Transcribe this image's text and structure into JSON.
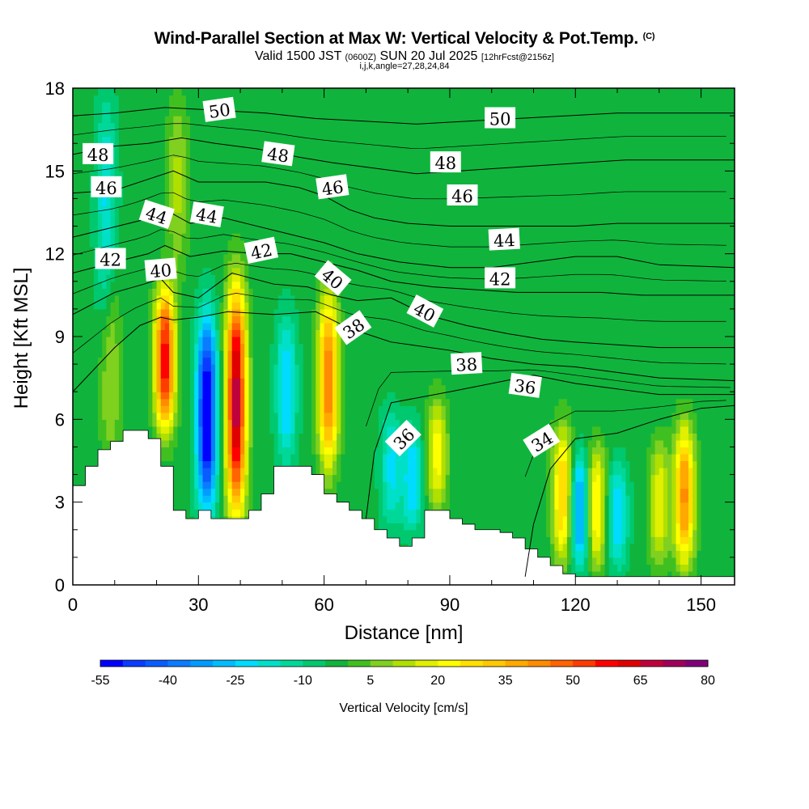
{
  "header": {
    "title": "Wind-Parallel Section at Max W: Vertical Velocity & Pot.Temp.",
    "copyright": "(C)",
    "valid_pre": "Valid 1500 JST ",
    "valid_utc": "(0600Z)",
    "valid_post": " SUN 20 Jul 2025 ",
    "forecast": "[12hrFcst@2156z]",
    "params": "i,j,k,angle=27,28,24,84"
  },
  "chart_data": {
    "type": "heatmap",
    "xlabel": "Distance [nm]",
    "ylabel": "Height [Kft MSL]",
    "xlim": [
      0,
      158
    ],
    "ylim": [
      0,
      18
    ],
    "x_ticks": [
      0,
      30,
      60,
      90,
      120,
      150
    ],
    "y_ticks": [
      0,
      3,
      6,
      9,
      12,
      15,
      18
    ],
    "colorbar": {
      "label": "Vertical Velocity [cm/s]",
      "tick_labels": [
        "-55",
        "-40",
        "-25",
        "-10",
        "5",
        "20",
        "35",
        "50",
        "65",
        "80"
      ],
      "levels": [
        -55,
        -50,
        -45,
        -40,
        -35,
        -30,
        -25,
        -20,
        -15,
        -10,
        -5,
        0,
        5,
        10,
        15,
        20,
        25,
        30,
        35,
        40,
        45,
        50,
        55,
        60,
        65,
        70,
        75,
        80
      ],
      "colors": [
        "#0000ff",
        "#0a3cff",
        "#0a5cff",
        "#0a7cff",
        "#009cff",
        "#00bcff",
        "#00dcff",
        "#00e0c8",
        "#00d89a",
        "#00c86e",
        "#10b43c",
        "#40c020",
        "#80d020",
        "#b0e000",
        "#e0f000",
        "#ffff00",
        "#ffe000",
        "#ffc800",
        "#ffa800",
        "#ff8c00",
        "#ff6400",
        "#ff3c00",
        "#ff0000",
        "#e00000",
        "#c0003c",
        "#a0005a",
        "#800078"
      ]
    },
    "w_field": {
      "background": -3,
      "cells": [
        {
          "x": 22,
          "z_bottom": 5.4,
          "z_top": 11.0,
          "peak": 62
        },
        {
          "x": 32,
          "z_bottom": 2.4,
          "z_top": 10.0,
          "peak": -55
        },
        {
          "x": 39,
          "z_bottom": 2.2,
          "z_top": 11.2,
          "peak": 72
        },
        {
          "x": 51,
          "z_bottom": 4.2,
          "z_top": 10.0,
          "peak": -22
        },
        {
          "x": 61,
          "z_bottom": 4.0,
          "z_top": 10.8,
          "peak": 48
        },
        {
          "x": 76,
          "z_bottom": 2.0,
          "z_top": 6.5,
          "peak": -18
        },
        {
          "x": 81,
          "z_bottom": 1.8,
          "z_top": 6.0,
          "peak": -22
        },
        {
          "x": 87,
          "z_bottom": 2.5,
          "z_top": 7.0,
          "peak": 25
        },
        {
          "x": 117,
          "z_bottom": 0.6,
          "z_top": 6.0,
          "peak": 35
        },
        {
          "x": 121,
          "z_bottom": 0.4,
          "z_top": 5.0,
          "peak": -32
        },
        {
          "x": 125,
          "z_bottom": 0.4,
          "z_top": 5.2,
          "peak": 30
        },
        {
          "x": 130,
          "z_bottom": 0.5,
          "z_top": 4.6,
          "peak": -22
        },
        {
          "x": 140,
          "z_bottom": 0.5,
          "z_top": 5.4,
          "peak": 22
        },
        {
          "x": 146,
          "z_bottom": 0.5,
          "z_top": 6.0,
          "peak": 45
        },
        {
          "x": 9,
          "z_bottom": 4.0,
          "z_top": 12.0,
          "peak": 14
        },
        {
          "x": 25,
          "z_bottom": 11.0,
          "z_top": 18.0,
          "peak": 14
        },
        {
          "x": 8,
          "z_bottom": 9.0,
          "z_top": 18.0,
          "peak": -18
        }
      ]
    },
    "terrain": [
      [
        0,
        3.6
      ],
      [
        3,
        3.6
      ],
      [
        3,
        4.3
      ],
      [
        6,
        4.3
      ],
      [
        6,
        4.9
      ],
      [
        9,
        4.9
      ],
      [
        9,
        5.2
      ],
      [
        12,
        5.2
      ],
      [
        12,
        5.6
      ],
      [
        18,
        5.6
      ],
      [
        18,
        5.3
      ],
      [
        21,
        5.3
      ],
      [
        21,
        4.3
      ],
      [
        24,
        4.3
      ],
      [
        24,
        2.7
      ],
      [
        27,
        2.7
      ],
      [
        27,
        2.4
      ],
      [
        30,
        2.4
      ],
      [
        30,
        2.7
      ],
      [
        33,
        2.7
      ],
      [
        33,
        2.4
      ],
      [
        42,
        2.4
      ],
      [
        42,
        2.7
      ],
      [
        45,
        2.7
      ],
      [
        45,
        3.3
      ],
      [
        48,
        3.3
      ],
      [
        48,
        4.3
      ],
      [
        57,
        4.3
      ],
      [
        57,
        4.0
      ],
      [
        60,
        4.0
      ],
      [
        60,
        3.3
      ],
      [
        63,
        3.3
      ],
      [
        63,
        3.0
      ],
      [
        66,
        3.0
      ],
      [
        66,
        2.7
      ],
      [
        69,
        2.7
      ],
      [
        69,
        2.4
      ],
      [
        72,
        2.4
      ],
      [
        72,
        2.0
      ],
      [
        75,
        2.0
      ],
      [
        75,
        1.7
      ],
      [
        78,
        1.7
      ],
      [
        78,
        1.4
      ],
      [
        81,
        1.4
      ],
      [
        81,
        1.7
      ],
      [
        84,
        1.7
      ],
      [
        84,
        2.7
      ],
      [
        90,
        2.7
      ],
      [
        90,
        2.4
      ],
      [
        93,
        2.4
      ],
      [
        93,
        2.2
      ],
      [
        96,
        2.2
      ],
      [
        96,
        2.0
      ],
      [
        102,
        2.0
      ],
      [
        102,
        1.9
      ],
      [
        105,
        1.9
      ],
      [
        105,
        1.7
      ],
      [
        108,
        1.7
      ],
      [
        108,
        1.3
      ],
      [
        111,
        1.3
      ],
      [
        111,
        1.0
      ],
      [
        114,
        1.0
      ],
      [
        114,
        0.7
      ],
      [
        117,
        0.7
      ],
      [
        117,
        0.4
      ],
      [
        120,
        0.4
      ],
      [
        120,
        0.3
      ],
      [
        158,
        0.3
      ]
    ],
    "theta_contours": [
      {
        "level": 34,
        "points": [
          [
            108,
            0.3
          ],
          [
            110,
            2.2
          ],
          [
            114,
            4.2
          ],
          [
            120,
            5.3
          ],
          [
            130,
            5.5
          ],
          [
            140,
            6.0
          ],
          [
            150,
            6.4
          ],
          [
            158,
            6.5
          ]
        ]
      },
      {
        "level": 36,
        "points": [
          [
            70,
            2.4
          ],
          [
            72,
            4.8
          ],
          [
            76,
            6.6
          ],
          [
            90,
            7.0
          ],
          [
            100,
            7.3
          ],
          [
            110,
            7.6
          ],
          [
            120,
            7.3
          ],
          [
            130,
            7.1
          ],
          [
            140,
            6.9
          ],
          [
            158,
            6.9
          ]
        ]
      },
      {
        "level": 38,
        "points": [
          [
            0,
            7.0
          ],
          [
            10,
            8.6
          ],
          [
            16,
            9.4
          ],
          [
            21,
            9.7
          ],
          [
            24,
            9.6
          ],
          [
            30,
            9.7
          ],
          [
            37,
            9.9
          ],
          [
            48,
            9.8
          ],
          [
            58,
            9.9
          ],
          [
            62,
            9.6
          ],
          [
            66,
            9.3
          ],
          [
            76,
            8.8
          ],
          [
            90,
            8.5
          ],
          [
            100,
            8.2
          ],
          [
            110,
            8.0
          ],
          [
            120,
            7.9
          ],
          [
            130,
            7.7
          ],
          [
            140,
            7.5
          ],
          [
            158,
            7.4
          ]
        ]
      },
      {
        "level": 40,
        "points": [
          [
            0,
            9.8
          ],
          [
            10,
            10.6
          ],
          [
            17,
            10.9
          ],
          [
            21,
            11.1
          ],
          [
            24,
            10.6
          ],
          [
            30,
            10.4
          ],
          [
            38,
            11.3
          ],
          [
            48,
            10.9
          ],
          [
            56,
            10.8
          ],
          [
            62,
            10.5
          ],
          [
            68,
            10.3
          ],
          [
            76,
            10.4
          ],
          [
            84,
            9.8
          ],
          [
            94,
            9.4
          ],
          [
            104,
            9.1
          ],
          [
            112,
            8.9
          ],
          [
            120,
            8.8
          ],
          [
            130,
            8.7
          ],
          [
            140,
            8.6
          ],
          [
            158,
            8.6
          ]
        ]
      },
      {
        "level": 42,
        "points": [
          [
            0,
            11.3
          ],
          [
            10,
            11.7
          ],
          [
            18,
            12.0
          ],
          [
            22,
            12.3
          ],
          [
            28,
            11.9
          ],
          [
            36,
            12.1
          ],
          [
            44,
            12.0
          ],
          [
            52,
            12.0
          ],
          [
            60,
            11.7
          ],
          [
            68,
            11.4
          ],
          [
            76,
            11.0
          ],
          [
            86,
            10.8
          ],
          [
            96,
            10.7
          ],
          [
            106,
            10.6
          ],
          [
            116,
            10.6
          ],
          [
            126,
            10.6
          ],
          [
            136,
            10.5
          ],
          [
            158,
            10.5
          ]
        ]
      },
      {
        "level": 44,
        "points": [
          [
            0,
            12.6
          ],
          [
            8,
            12.9
          ],
          [
            16,
            13.2
          ],
          [
            22,
            13.6
          ],
          [
            28,
            13.1
          ],
          [
            36,
            13.3
          ],
          [
            44,
            13.0
          ],
          [
            52,
            12.7
          ],
          [
            60,
            12.4
          ],
          [
            68,
            12.0
          ],
          [
            78,
            11.7
          ],
          [
            90,
            11.5
          ],
          [
            100,
            11.5
          ],
          [
            110,
            11.7
          ],
          [
            120,
            11.9
          ],
          [
            130,
            11.9
          ],
          [
            140,
            11.6
          ],
          [
            158,
            11.5
          ]
        ]
      },
      {
        "level": 46,
        "points": [
          [
            0,
            14.2
          ],
          [
            10,
            14.3
          ],
          [
            18,
            14.7
          ],
          [
            24,
            15.0
          ],
          [
            30,
            14.6
          ],
          [
            38,
            14.6
          ],
          [
            46,
            14.6
          ],
          [
            54,
            14.4
          ],
          [
            60,
            14.1
          ],
          [
            66,
            13.6
          ],
          [
            72,
            13.3
          ],
          [
            80,
            13.1
          ],
          [
            90,
            13.0
          ],
          [
            100,
            13.0
          ],
          [
            110,
            13.0
          ],
          [
            120,
            13.0
          ],
          [
            130,
            13.1
          ],
          [
            158,
            13.1
          ]
        ]
      },
      {
        "level": 48,
        "points": [
          [
            0,
            15.6
          ],
          [
            10,
            15.9
          ],
          [
            18,
            16.0
          ],
          [
            26,
            16.2
          ],
          [
            34,
            16.0
          ],
          [
            44,
            15.8
          ],
          [
            54,
            15.5
          ],
          [
            62,
            15.3
          ],
          [
            72,
            15.1
          ],
          [
            82,
            14.9
          ],
          [
            92,
            15.0
          ],
          [
            102,
            15.1
          ],
          [
            112,
            15.2
          ],
          [
            122,
            15.3
          ],
          [
            132,
            15.4
          ],
          [
            158,
            15.4
          ]
        ]
      },
      {
        "level": 50,
        "points": [
          [
            0,
            17.0
          ],
          [
            10,
            17.1
          ],
          [
            22,
            17.3
          ],
          [
            34,
            17.2
          ],
          [
            46,
            17.1
          ],
          [
            58,
            16.9
          ],
          [
            70,
            16.8
          ],
          [
            82,
            16.7
          ],
          [
            94,
            16.8
          ],
          [
            106,
            16.9
          ],
          [
            118,
            17.0
          ],
          [
            130,
            17.1
          ],
          [
            158,
            17.1
          ]
        ]
      }
    ],
    "contour_labels": [
      {
        "text": "50",
        "x": 35,
        "z": 17.2,
        "angle": -8
      },
      {
        "text": "50",
        "x": 102,
        "z": 16.9,
        "angle": 0
      },
      {
        "text": "48",
        "x": 6,
        "z": 15.6,
        "angle": 0
      },
      {
        "text": "48",
        "x": 49,
        "z": 15.6,
        "angle": 8
      },
      {
        "text": "48",
        "x": 89,
        "z": 15.3,
        "angle": 0
      },
      {
        "text": "46",
        "x": 8,
        "z": 14.4,
        "angle": 0
      },
      {
        "text": "46",
        "x": 62,
        "z": 14.4,
        "angle": -8
      },
      {
        "text": "46",
        "x": 93,
        "z": 14.1,
        "angle": 0
      },
      {
        "text": "44",
        "x": 20,
        "z": 13.4,
        "angle": 18
      },
      {
        "text": "44",
        "x": 32,
        "z": 13.4,
        "angle": 10
      },
      {
        "text": "44",
        "x": 103,
        "z": 12.5,
        "angle": -3
      },
      {
        "text": "42",
        "x": 9,
        "z": 11.8,
        "angle": 0
      },
      {
        "text": "42",
        "x": 45,
        "z": 12.1,
        "angle": -12
      },
      {
        "text": "42",
        "x": 102,
        "z": 11.1,
        "angle": 0
      },
      {
        "text": "40",
        "x": 21,
        "z": 11.4,
        "angle": -5
      },
      {
        "text": "40",
        "x": 62,
        "z": 11.1,
        "angle": 40
      },
      {
        "text": "40",
        "x": 84,
        "z": 9.9,
        "angle": 28
      },
      {
        "text": "38",
        "x": 67,
        "z": 9.3,
        "angle": -35
      },
      {
        "text": "38",
        "x": 94,
        "z": 8.0,
        "angle": -3
      },
      {
        "text": "36",
        "x": 108,
        "z": 7.2,
        "angle": 8
      },
      {
        "text": "36",
        "x": 79,
        "z": 5.3,
        "angle": -45
      },
      {
        "text": "34",
        "x": 112,
        "z": 5.2,
        "angle": -32
      }
    ]
  }
}
